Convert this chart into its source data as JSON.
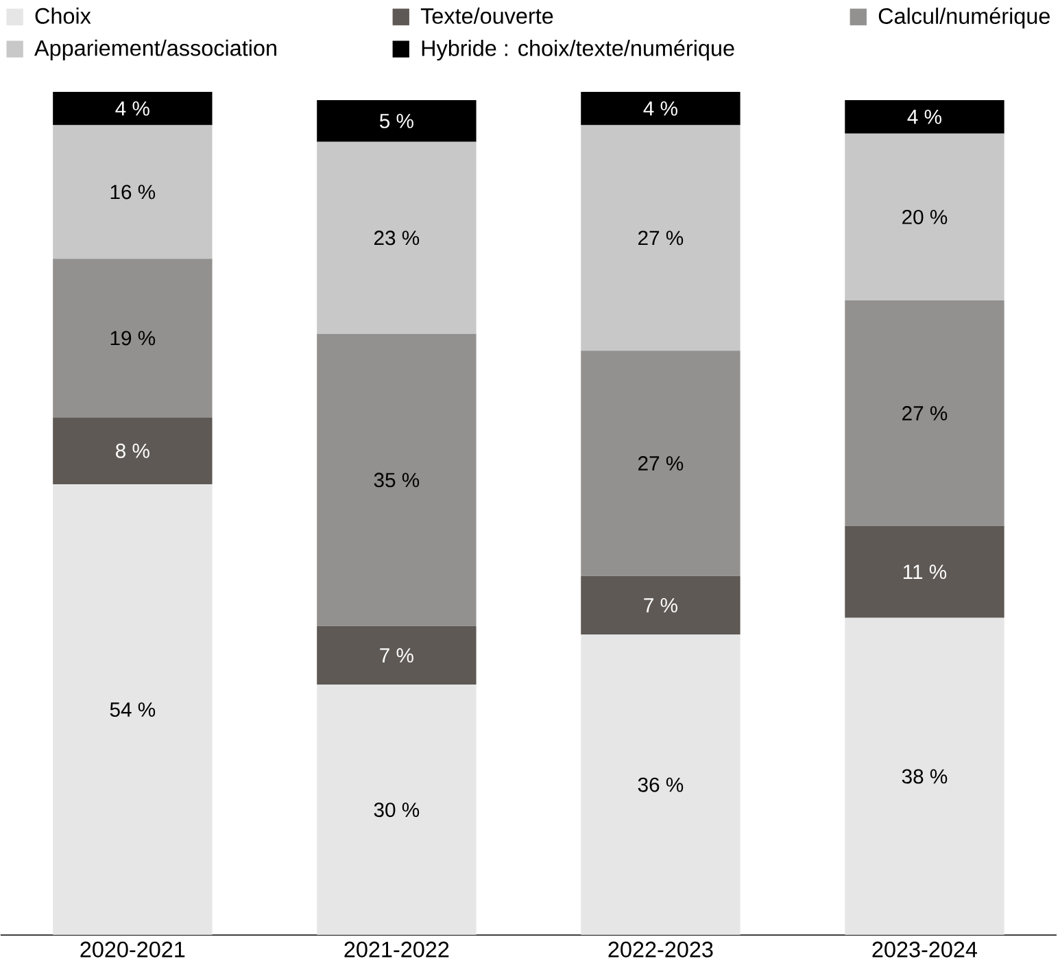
{
  "chart_data": {
    "type": "bar",
    "stacked": true,
    "categories": [
      "2020-2021",
      "2021-2022",
      "2022-2023",
      "2023-2024"
    ],
    "series": [
      {
        "name": "Choix",
        "color": "#e6e6e6",
        "values": [
          54,
          30,
          36,
          38
        ],
        "value_labels": [
          "54 %",
          "30 %",
          "36 %",
          "38 %"
        ]
      },
      {
        "name": "Texte/ouverte",
        "color": "#5e5954",
        "values": [
          8,
          7,
          7,
          11
        ],
        "value_labels": [
          "8 %",
          "7 %",
          "7 %",
          "11 %"
        ]
      },
      {
        "name": "Calcul/numérique",
        "color": "#929190",
        "values": [
          19,
          35,
          27,
          27
        ],
        "value_labels": [
          "19 %",
          "35 %",
          "27 %",
          "27 %"
        ]
      },
      {
        "name": "Appariement/association",
        "color": "#c8c8c8",
        "values": [
          16,
          23,
          27,
          20
        ],
        "value_labels": [
          "16 %",
          "23 %",
          "27 %",
          "20 %"
        ]
      },
      {
        "name": "Hybride : choix/texte/numérique",
        "color": "#000000",
        "values": [
          4,
          5,
          4,
          4
        ],
        "value_labels": [
          "4 %",
          "5 %",
          "4 %",
          "4 %"
        ]
      }
    ],
    "legend": "top",
    "grid": false,
    "tick_labels": "x"
  }
}
